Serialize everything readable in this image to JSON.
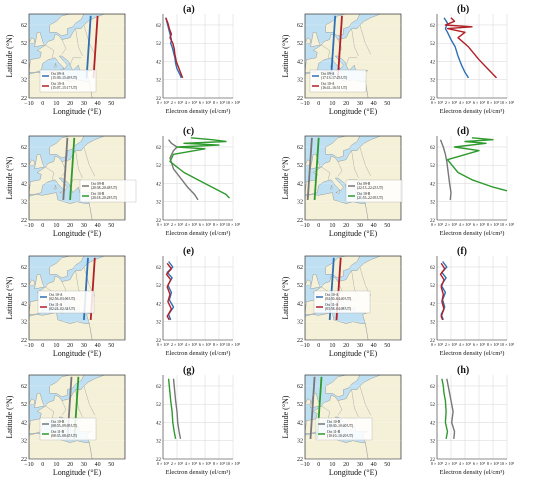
{
  "figure": {
    "colors": {
      "sea": "#bfe0f2",
      "land": "#f4f1d8",
      "border": "#9a9a9a",
      "grid": "#d6d6d6",
      "A_first": "#2f6fb5",
      "A_second": "#b11f27",
      "B_first": "#777777",
      "B_second": "#2e9a2e"
    },
    "map_axes": {
      "xlabel": "Longitude (°E)",
      "ylabel": "Latitude (°N)",
      "xticks": [
        "−10",
        "0",
        "10",
        "20",
        "30",
        "40",
        "50"
      ],
      "yticks": [
        "22",
        "32",
        "42",
        "52",
        "62"
      ]
    },
    "density_axes": {
      "xlabel": "Electron density (el/cm³)",
      "xticks": [
        "0 × 10⁵",
        "2 × 10⁵",
        "4 × 10⁵",
        "6 × 10⁵",
        "8 × 10⁵",
        "10 × 10⁵"
      ],
      "yticks": [
        "22",
        "32",
        "42",
        "52",
        "62"
      ]
    }
  },
  "chart_data": [
    {
      "type": "line",
      "panel": "(a)",
      "xlabel": "Longitude (°E)",
      "ylabel": "Latitude (°N)",
      "xlim": [
        -10,
        60
      ],
      "ylim": [
        22,
        68
      ],
      "series": [
        {
          "name": "Oct 09-A (15:39–15:49 UT)",
          "color": "#2f6fb5",
          "x": [
            32,
            35
          ],
          "y": [
            33,
            67
          ]
        },
        {
          "name": "Oct 10-A (15:07–15:17 UT)",
          "color": "#b11f27",
          "x": [
            37,
            40
          ],
          "y": [
            33,
            67
          ]
        }
      ]
    },
    {
      "type": "line",
      "panel": "(a)",
      "xlabel": "Electron density (el/cm³)",
      "xlim": [
        0,
        1000000
      ],
      "ylim": [
        22,
        68
      ],
      "series": [
        {
          "name": "Oct 09-A",
          "color": "#2f6fb5",
          "x": [
            40000,
            60000,
            80000,
            100000,
            120000,
            110000,
            130000,
            150000,
            170000,
            180000,
            200000,
            240000,
            260000
          ],
          "y": [
            66,
            63,
            60,
            57,
            54,
            52,
            50,
            47,
            44,
            41,
            38,
            35,
            33
          ]
        },
        {
          "name": "Oct 10-A",
          "color": "#b11f27",
          "x": [
            40000,
            70000,
            90000,
            120000,
            100000,
            140000,
            160000,
            170000,
            190000,
            220000,
            250000,
            280000
          ],
          "y": [
            66,
            63,
            60,
            57,
            55,
            52,
            49,
            46,
            42,
            39,
            36,
            33
          ]
        }
      ]
    },
    {
      "type": "line",
      "panel": "(b)",
      "xlabel": "Longitude (°E)",
      "ylabel": "Latitude (°N)",
      "xlim": [
        -10,
        60
      ],
      "ylim": [
        22,
        68
      ],
      "series": [
        {
          "name": "Oct 09-A (17:13–17:23 UT)",
          "color": "#2f6fb5",
          "x": [
            9,
            12
          ],
          "y": [
            33,
            67
          ]
        },
        {
          "name": "Oct 10-A (16:41–16:51 UT)",
          "color": "#b11f27",
          "x": [
            14,
            17
          ],
          "y": [
            33,
            67
          ]
        }
      ]
    },
    {
      "type": "line",
      "panel": "(b)",
      "xlabel": "Electron density (el/cm³)",
      "xlim": [
        0,
        1000000
      ],
      "ylim": [
        22,
        68
      ],
      "series": [
        {
          "name": "Oct 09-A",
          "color": "#2f6fb5",
          "x": [
            100000,
            150000,
            120000,
            150000,
            200000,
            260000,
            300000,
            350000,
            400000,
            450000
          ],
          "y": [
            66,
            63,
            60,
            58,
            54,
            50,
            45,
            40,
            36,
            33
          ]
        },
        {
          "name": "Oct 10-A",
          "color": "#b11f27",
          "x": [
            200000,
            250000,
            120000,
            500000,
            150000,
            400000,
            300000,
            450000,
            600000,
            750000,
            850000
          ],
          "y": [
            66,
            64,
            62,
            61,
            60,
            58,
            55,
            50,
            43,
            37,
            33
          ]
        }
      ]
    },
    {
      "type": "line",
      "panel": "(c)",
      "xlabel": "Longitude (°E)",
      "ylabel": "Latitude (°N)",
      "xlim": [
        -10,
        60
      ],
      "ylim": [
        22,
        68
      ],
      "series": [
        {
          "name": "Oct 09-B (20:38–20:48 UT)",
          "color": "#777777",
          "x": [
            15,
            18
          ],
          "y": [
            33,
            67
          ]
        },
        {
          "name": "Oct 10-B (20:18–20:28 UT)",
          "color": "#2e9a2e",
          "x": [
            20,
            23
          ],
          "y": [
            33,
            67
          ]
        }
      ]
    },
    {
      "type": "line",
      "panel": "(c)",
      "xlabel": "Electron density (el/cm³)",
      "xlim": [
        0,
        1000000
      ],
      "ylim": [
        22,
        68
      ],
      "series": [
        {
          "name": "Oct 09-B",
          "color": "#777777",
          "x": [
            80000,
            120000,
            200000,
            150000,
            100000,
            150000,
            250000,
            350000,
            450000,
            500000
          ],
          "y": [
            66,
            64,
            62,
            60,
            56,
            50,
            45,
            40,
            36,
            33
          ]
        },
        {
          "name": "Oct 10-B",
          "color": "#2e9a2e",
          "x": [
            400000,
            700000,
            900000,
            300000,
            800000,
            200000,
            600000,
            150000,
            100000,
            300000,
            600000,
            900000,
            950000
          ],
          "y": [
            67,
            66,
            65,
            64,
            63,
            62,
            61,
            58,
            54,
            48,
            42,
            36,
            34
          ]
        }
      ]
    },
    {
      "type": "line",
      "panel": "(d)",
      "xlabel": "Longitude (°E)",
      "ylabel": "Latitude (°N)",
      "xlim": [
        -10,
        60
      ],
      "ylim": [
        22,
        68
      ],
      "series": [
        {
          "name": "Oct 09-B (22:13–22:23 UT)",
          "color": "#777777",
          "x": [
            -8,
            -5
          ],
          "y": [
            33,
            67
          ]
        },
        {
          "name": "Oct 10-B (21:53–22:03 UT)",
          "color": "#2e9a2e",
          "x": [
            -3,
            0
          ],
          "y": [
            33,
            67
          ]
        }
      ]
    },
    {
      "type": "line",
      "panel": "(d)",
      "xlabel": "Electron density (el/cm³)",
      "xlim": [
        0,
        1000000
      ],
      "ylim": [
        22,
        68
      ],
      "series": [
        {
          "name": "Oct 09-B",
          "color": "#777777",
          "x": [
            50000,
            90000,
            120000,
            140000,
            160000,
            180000,
            200000,
            190000
          ],
          "y": [
            66,
            62,
            58,
            54,
            48,
            42,
            37,
            33
          ]
        },
        {
          "name": "Oct 10-B",
          "color": "#2e9a2e",
          "x": [
            500000,
            800000,
            400000,
            700000,
            250000,
            600000,
            150000,
            300000,
            500000,
            800000,
            1000000
          ],
          "y": [
            67,
            66,
            65,
            64,
            62,
            60,
            55,
            48,
            44,
            40,
            38
          ]
        }
      ]
    },
    {
      "type": "line",
      "panel": "(e)",
      "xlabel": "Longitude (°E)",
      "ylabel": "Latitude (°N)",
      "xlim": [
        -10,
        60
      ],
      "ylim": [
        22,
        68
      ],
      "series": [
        {
          "name": "Oct 10-A (02:56–03:06 UT)",
          "color": "#2f6fb5",
          "x": [
            30,
            33
          ],
          "y": [
            33,
            67
          ]
        },
        {
          "name": "Oct 11-A (02:24–02:34 UT)",
          "color": "#b11f27",
          "x": [
            35,
            38
          ],
          "y": [
            33,
            67
          ]
        }
      ]
    },
    {
      "type": "line",
      "panel": "(e)",
      "xlabel": "Electron density (el/cm³)",
      "xlim": [
        0,
        1000000
      ],
      "ylim": [
        22,
        68
      ],
      "series": [
        {
          "name": "Oct 10-A",
          "color": "#2f6fb5",
          "x": [
            80000,
            140000,
            60000,
            130000,
            70000,
            120000,
            90000,
            150000,
            80000,
            110000
          ],
          "y": [
            65,
            62,
            59,
            56,
            52,
            48,
            44,
            40,
            36,
            33
          ]
        },
        {
          "name": "Oct 11-A",
          "color": "#b11f27",
          "x": [
            60000,
            120000,
            50000,
            110000,
            60000,
            100000,
            70000,
            120000,
            60000,
            90000
          ],
          "y": [
            64,
            61,
            58,
            55,
            51,
            47,
            43,
            39,
            35,
            33
          ]
        }
      ]
    },
    {
      "type": "line",
      "panel": "(f)",
      "xlabel": "Longitude (°E)",
      "ylabel": "Latitude (°N)",
      "xlim": [
        -10,
        60
      ],
      "ylim": [
        22,
        68
      ],
      "series": [
        {
          "name": "Oct 10-A (04:30–04:40 UT)",
          "color": "#2f6fb5",
          "x": [
            8,
            11
          ],
          "y": [
            33,
            67
          ]
        },
        {
          "name": "Oct 11-A (03:58–04:08 UT)",
          "color": "#b11f27",
          "x": [
            13,
            16
          ],
          "y": [
            33,
            67
          ]
        }
      ]
    },
    {
      "type": "line",
      "panel": "(f)",
      "xlabel": "Electron density (el/cm³)",
      "xlim": [
        0,
        1000000
      ],
      "ylim": [
        22,
        68
      ],
      "series": [
        {
          "name": "Oct 10-A",
          "color": "#2f6fb5",
          "x": [
            80000,
            140000,
            70000,
            130000,
            60000,
            120000,
            80000,
            110000,
            60000,
            90000
          ],
          "y": [
            65,
            62,
            59,
            56,
            52,
            48,
            44,
            40,
            36,
            33
          ]
        },
        {
          "name": "Oct 11-A",
          "color": "#b11f27",
          "x": [
            60000,
            110000,
            50000,
            100000,
            60000,
            90000,
            70000,
            100000,
            60000,
            80000
          ],
          "y": [
            64,
            61,
            58,
            55,
            51,
            47,
            43,
            39,
            35,
            33
          ]
        }
      ]
    },
    {
      "type": "line",
      "panel": "(g)",
      "xlabel": "Longitude (°E)",
      "ylabel": "Latitude (°N)",
      "xlim": [
        -10,
        60
      ],
      "ylim": [
        22,
        68
      ],
      "series": [
        {
          "name": "Oct 10-B (08:55–09:05 UT)",
          "color": "#777777",
          "x": [
            18,
            21
          ],
          "y": [
            33,
            67
          ]
        },
        {
          "name": "Oct 11-B (08:35–08:45 UT)",
          "color": "#2e9a2e",
          "x": [
            23,
            26
          ],
          "y": [
            33,
            67
          ]
        }
      ]
    },
    {
      "type": "line",
      "panel": "(g)",
      "xlabel": "Electron density (el/cm³)",
      "xlim": [
        0,
        1000000
      ],
      "ylim": [
        22,
        68
      ],
      "series": [
        {
          "name": "Oct 10-B",
          "color": "#777777",
          "x": [
            150000,
            160000,
            170000,
            180000,
            200000,
            210000,
            230000,
            250000
          ],
          "y": [
            66,
            62,
            58,
            54,
            48,
            42,
            37,
            33
          ]
        },
        {
          "name": "Oct 11-B",
          "color": "#2e9a2e",
          "x": [
            80000,
            90000,
            100000,
            110000,
            130000,
            140000,
            160000,
            180000
          ],
          "y": [
            66,
            62,
            58,
            54,
            48,
            42,
            37,
            33
          ]
        }
      ]
    },
    {
      "type": "line",
      "panel": "(h)",
      "xlabel": "Longitude (°E)",
      "ylabel": "Latitude (°N)",
      "xlim": [
        -10,
        60
      ],
      "ylim": [
        22,
        68
      ],
      "series": [
        {
          "name": "Oct 10-B (10:30–10:40 UT)",
          "color": "#777777",
          "x": [
            -6,
            -3
          ],
          "y": [
            33,
            67
          ]
        },
        {
          "name": "Oct 11-B (10:10–10:20 UT)",
          "color": "#2e9a2e",
          "x": [
            -1,
            2
          ],
          "y": [
            33,
            67
          ]
        }
      ]
    },
    {
      "type": "line",
      "panel": "(h)",
      "xlabel": "Electron density (el/cm³)",
      "xlim": [
        0,
        1000000
      ],
      "ylim": [
        22,
        68
      ],
      "series": [
        {
          "name": "Oct 10-B",
          "color": "#777777",
          "x": [
            140000,
            160000,
            180000,
            200000,
            230000,
            210000,
            250000,
            240000
          ],
          "y": [
            66,
            62,
            58,
            54,
            48,
            42,
            37,
            33
          ]
        },
        {
          "name": "Oct 11-B",
          "color": "#2e9a2e",
          "x": [
            70000,
            90000,
            100000,
            120000,
            130000,
            120000,
            150000,
            130000
          ],
          "y": [
            66,
            62,
            58,
            54,
            48,
            42,
            37,
            33
          ]
        }
      ]
    }
  ]
}
